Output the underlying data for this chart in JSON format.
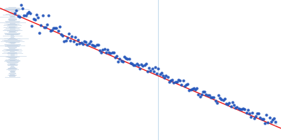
{
  "background_color": "#ffffff",
  "xlim": [
    -0.02,
    1.02
  ],
  "ylim": [
    0.25,
    0.85
  ],
  "line_color": "#ee1111",
  "line_x0": -0.02,
  "line_y0": 0.815,
  "line_x1": 1.02,
  "line_y1": 0.3,
  "n_points": 170,
  "noise_scale": 0.01,
  "dot_color": "#2255bb",
  "dot_size": 9,
  "dot_alpha": 0.92,
  "error_x_center": 0.025,
  "error_color": "#aac0d8",
  "error_alpha": 0.55,
  "vline_x": 0.565,
  "vline_color": "#b8d4e8",
  "vline_alpha": 0.8,
  "vline_lw": 0.8,
  "fade_dot_color": "#b8cce0",
  "fade_dot_alpha": 0.45
}
